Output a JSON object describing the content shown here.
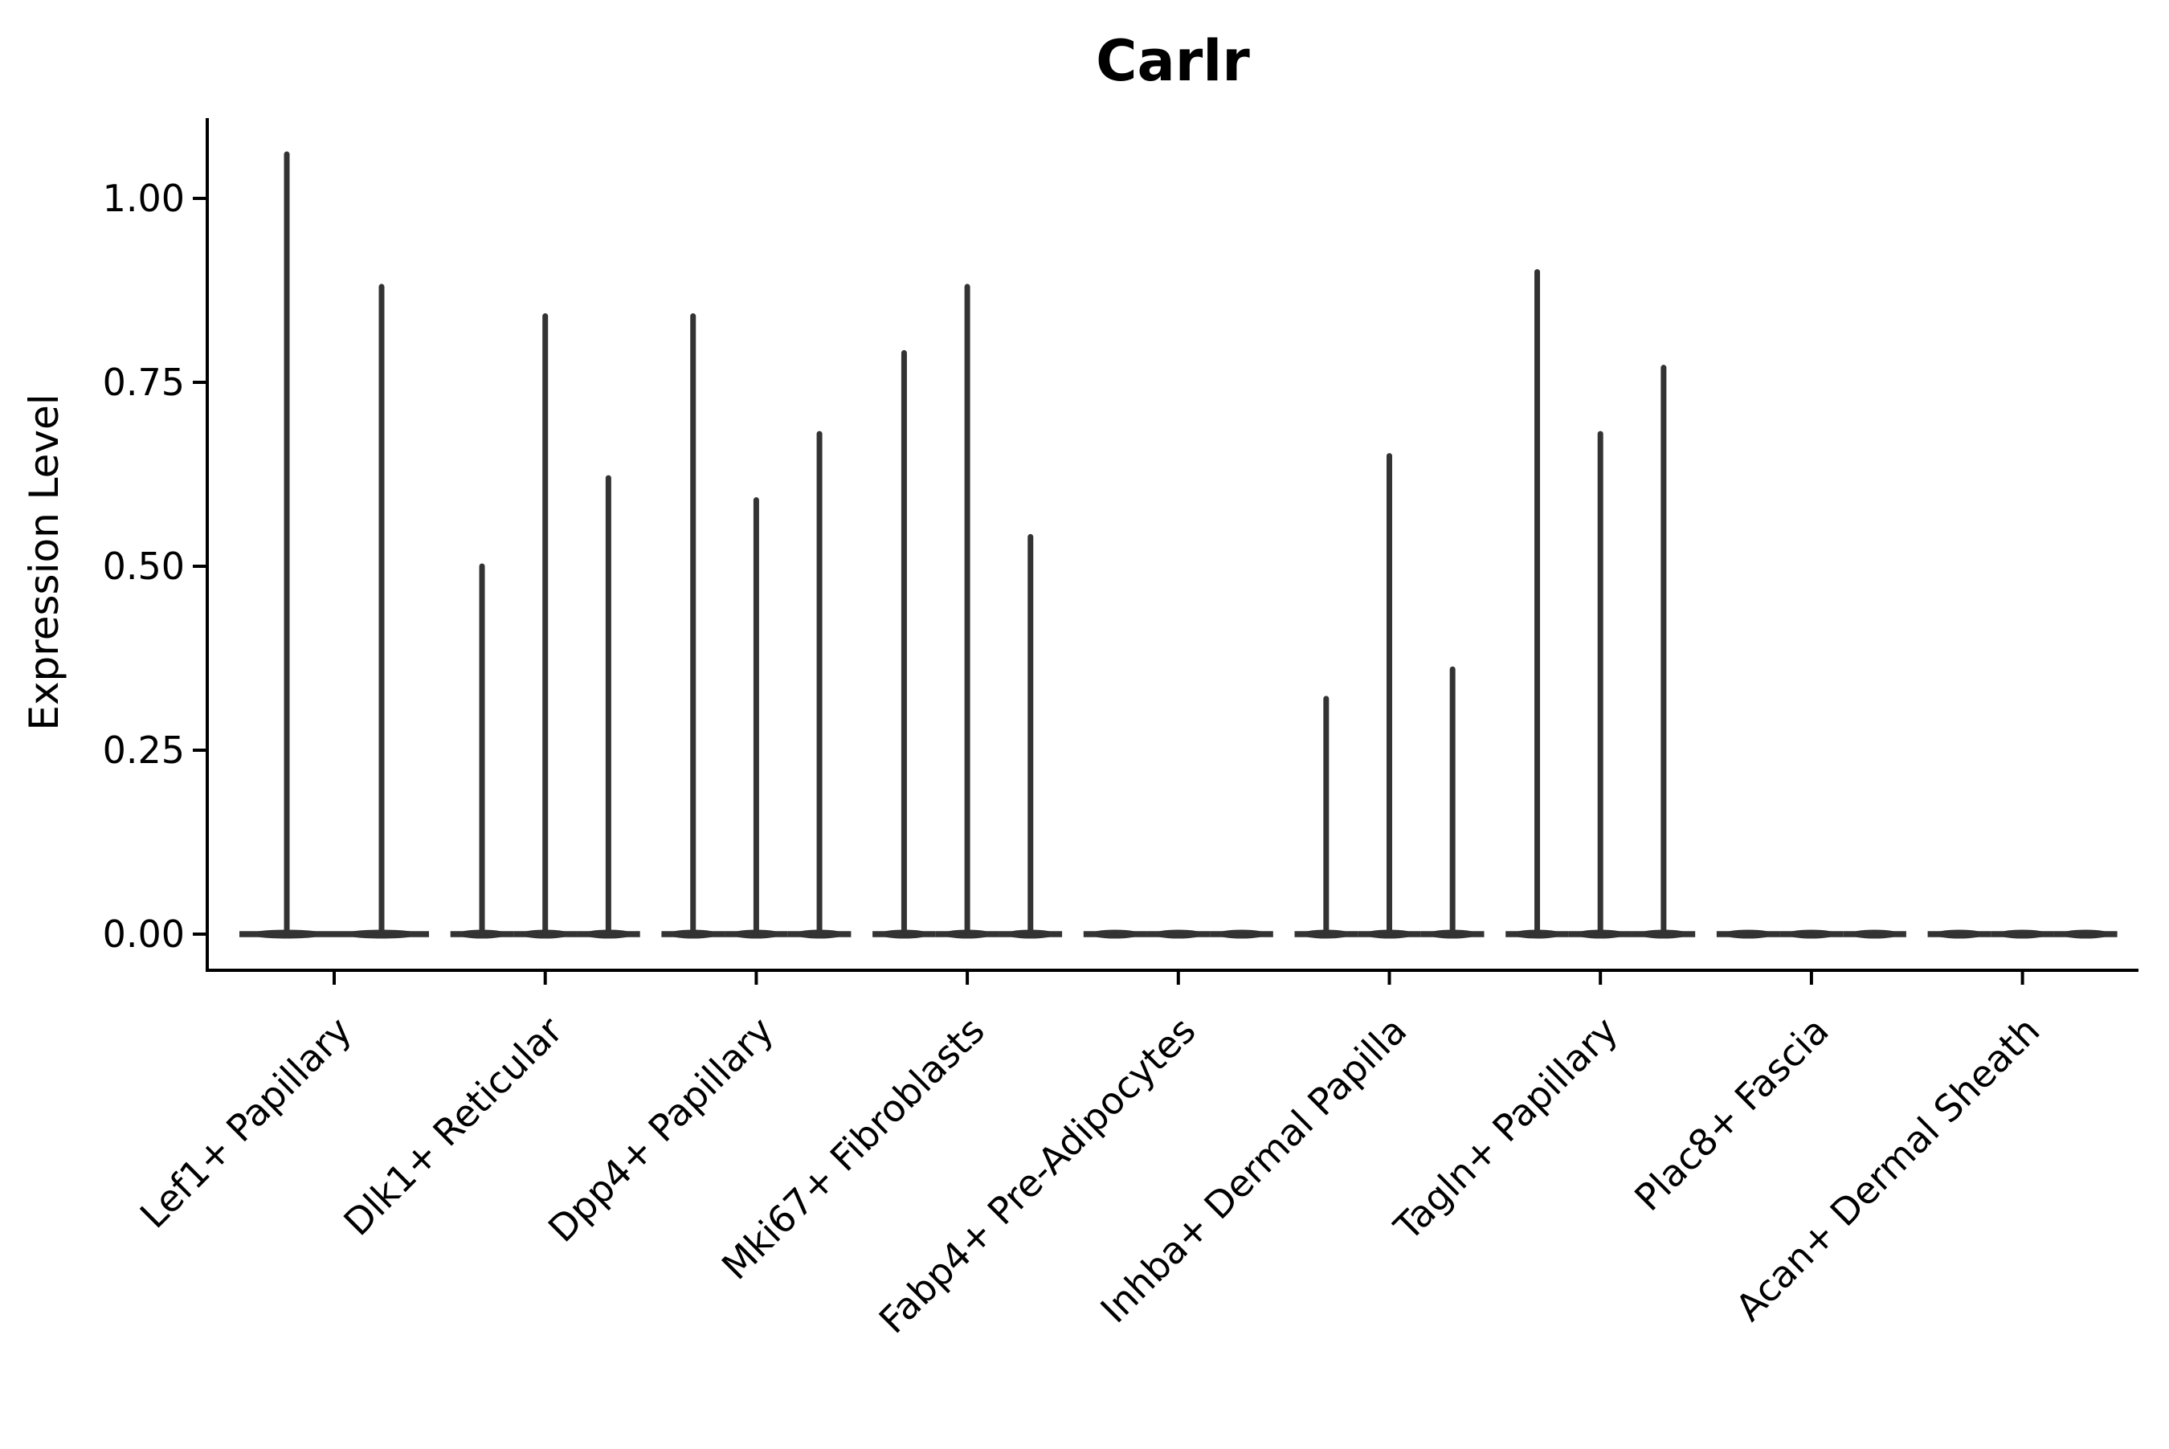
{
  "figure": {
    "title": "Carlr",
    "ylabel": "Expression Level",
    "xlabel": ""
  },
  "chart_data": {
    "type": "violin",
    "title": "Carlr",
    "ylabel": "Expression Level",
    "xlabel": "",
    "legend": "none",
    "grid": false,
    "background": "#ffffff",
    "violin_color": "#333333",
    "axis_color": "#000000",
    "ylim": [
      -0.05,
      1.11
    ],
    "yticks": [
      0.0,
      0.25,
      0.5,
      0.75,
      1.0
    ],
    "ytick_labels": [
      "0.00",
      "0.25",
      "0.50",
      "0.75",
      "1.00"
    ],
    "categories": [
      "Lef1+ Papillary",
      "Dlk1+ Reticular",
      "Dpp4+ Papillary",
      "Mki67+ Fibroblasts",
      "Fabp4+ Pre-Adipocytes",
      "Inhba+ Dermal Papilla",
      "Tagln+ Papillary",
      "Plac8+ Fascia",
      "Acan+ Dermal Sheath"
    ],
    "description": "Sparse single-cell expression violins: distribution mass sits at 0 (flat base line across each group) with a thin vertical spike up to the max expression of each violin.",
    "violin_max_values_per_category": [
      [
        1.06,
        0.88
      ],
      [
        0.5,
        0.84,
        0.62
      ],
      [
        0.84,
        0.59,
        0.68
      ],
      [
        0.79,
        0.88,
        0.54
      ],
      [
        0.0,
        0.0,
        0.0
      ],
      [
        0.32,
        0.65,
        0.36
      ],
      [
        0.9,
        0.68,
        0.77
      ],
      [
        0.0,
        0.0,
        0.0
      ],
      [
        0.0,
        0.0,
        0.0
      ]
    ]
  }
}
